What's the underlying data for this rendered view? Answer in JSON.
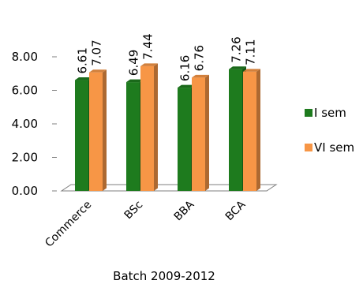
{
  "chart_data": {
    "type": "bar",
    "categories": [
      "Commerce",
      "BSc",
      "BBA",
      "BCA"
    ],
    "series": [
      {
        "name": "I sem",
        "values": [
          6.61,
          6.49,
          6.16,
          7.26
        ],
        "labels": [
          "6.61",
          "6.49",
          "6.16",
          "7.26"
        ],
        "color": "#1e7b1e"
      },
      {
        "name": "VI sem",
        "values": [
          7.07,
          7.44,
          6.76,
          7.11
        ],
        "labels": [
          "7.07",
          "7.44",
          "6.76",
          "7.11"
        ],
        "color": "#f79646"
      }
    ],
    "xlabel": "Batch 2009-2012",
    "ylabel": "",
    "ylim": [
      0,
      8
    ],
    "yticks": [
      "0.00",
      "2.00",
      "4.00",
      "6.00",
      "8.00"
    ],
    "gridlines": false,
    "legend_position": "right",
    "style": "3d-clustered-column"
  }
}
